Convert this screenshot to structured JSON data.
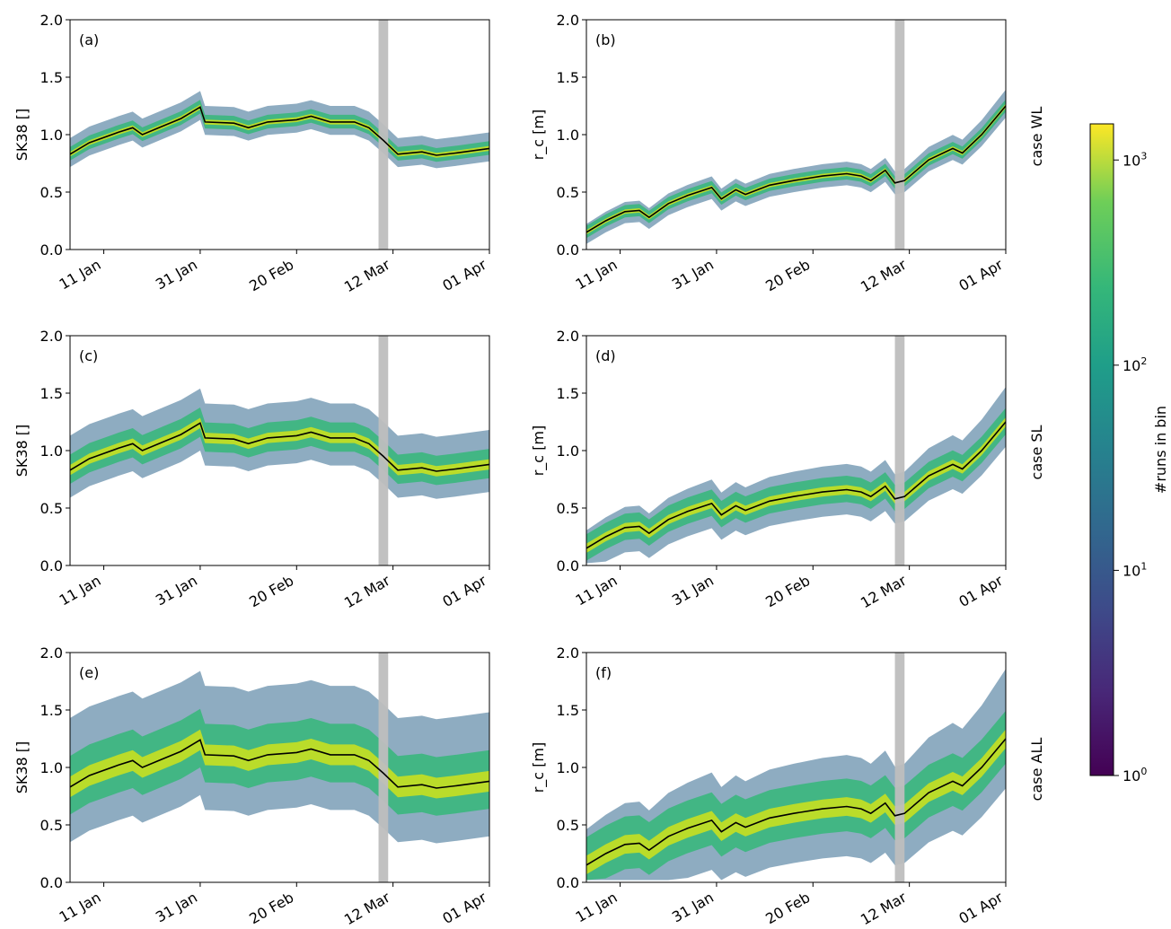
{
  "colorbar": {
    "label": "#runs in bin",
    "scale": "log",
    "range": [
      1,
      1500
    ],
    "ticks": [
      {
        "base": "10",
        "exp": "0",
        "value": 1
      },
      {
        "base": "10",
        "exp": "1",
        "value": 10
      },
      {
        "base": "10",
        "exp": "2",
        "value": 100
      },
      {
        "base": "10",
        "exp": "3",
        "value": 1000
      }
    ],
    "colormap": "viridis"
  },
  "shared_axes": {
    "x_ticks": [
      "11 Jan",
      "31 Jan",
      "20 Feb",
      "12 Mar",
      "01 Apr"
    ],
    "y_ticks": [
      "0.0",
      "0.5",
      "1.0",
      "1.5",
      "2.0"
    ],
    "ylim": [
      0,
      2
    ]
  },
  "rows": [
    {
      "case": "case WL"
    },
    {
      "case": "case SL"
    },
    {
      "case": "case ALL"
    }
  ],
  "chart_data": [
    {
      "type": "heatmap",
      "panel": "(a)",
      "ylabel": "SK38 []",
      "variable": "SK38",
      "x_ticks": [
        "11 Jan",
        "31 Jan",
        "20 Feb",
        "12 Mar",
        "01 Apr"
      ],
      "highlight_band": {
        "color": "#bebebe",
        "x_range": [
          "09 Mar",
          "11 Mar"
        ]
      },
      "median_line": [
        {
          "x": "04 Jan",
          "y": 0.83
        },
        {
          "x": "08 Jan",
          "y": 0.93
        },
        {
          "x": "14 Jan",
          "y": 1.02
        },
        {
          "x": "17 Jan",
          "y": 1.06
        },
        {
          "x": "19 Jan",
          "y": 1.0
        },
        {
          "x": "23 Jan",
          "y": 1.07
        },
        {
          "x": "27 Jan",
          "y": 1.14
        },
        {
          "x": "31 Jan",
          "y": 1.24
        },
        {
          "x": "01 Feb",
          "y": 1.11
        },
        {
          "x": "07 Feb",
          "y": 1.1
        },
        {
          "x": "10 Feb",
          "y": 1.06
        },
        {
          "x": "14 Feb",
          "y": 1.11
        },
        {
          "x": "20 Feb",
          "y": 1.13
        },
        {
          "x": "23 Feb",
          "y": 1.16
        },
        {
          "x": "27 Feb",
          "y": 1.11
        },
        {
          "x": "04 Mar",
          "y": 1.11
        },
        {
          "x": "07 Mar",
          "y": 1.06
        },
        {
          "x": "10 Mar",
          "y": 0.95
        },
        {
          "x": "13 Mar",
          "y": 0.83
        },
        {
          "x": "18 Mar",
          "y": 0.85
        },
        {
          "x": "21 Mar",
          "y": 0.82
        },
        {
          "x": "25 Mar",
          "y": 0.84
        },
        {
          "x": "01 Apr",
          "y": 0.88
        }
      ]
    },
    {
      "type": "heatmap",
      "panel": "(b)",
      "ylabel": "r_c [m]",
      "variable": "r_c",
      "x_ticks": [
        "11 Jan",
        "31 Jan",
        "20 Feb",
        "12 Mar",
        "01 Apr"
      ],
      "highlight_band": {
        "color": "#bebebe",
        "x_range": [
          "09 Mar",
          "11 Mar"
        ]
      },
      "median_line": [
        {
          "x": "04 Jan",
          "y": 0.15
        },
        {
          "x": "08 Jan",
          "y": 0.25
        },
        {
          "x": "12 Jan",
          "y": 0.33
        },
        {
          "x": "15 Jan",
          "y": 0.34
        },
        {
          "x": "17 Jan",
          "y": 0.28
        },
        {
          "x": "21 Jan",
          "y": 0.4
        },
        {
          "x": "25 Jan",
          "y": 0.47
        },
        {
          "x": "30 Jan",
          "y": 0.54
        },
        {
          "x": "01 Feb",
          "y": 0.44
        },
        {
          "x": "04 Feb",
          "y": 0.52
        },
        {
          "x": "06 Feb",
          "y": 0.48
        },
        {
          "x": "11 Feb",
          "y": 0.56
        },
        {
          "x": "16 Feb",
          "y": 0.6
        },
        {
          "x": "22 Feb",
          "y": 0.64
        },
        {
          "x": "27 Feb",
          "y": 0.66
        },
        {
          "x": "02 Mar",
          "y": 0.64
        },
        {
          "x": "04 Mar",
          "y": 0.6
        },
        {
          "x": "07 Mar",
          "y": 0.69
        },
        {
          "x": "09 Mar",
          "y": 0.58
        },
        {
          "x": "11 Mar",
          "y": 0.6
        },
        {
          "x": "16 Mar",
          "y": 0.78
        },
        {
          "x": "21 Mar",
          "y": 0.88
        },
        {
          "x": "23 Mar",
          "y": 0.84
        },
        {
          "x": "27 Mar",
          "y": 1.0
        },
        {
          "x": "01 Apr",
          "y": 1.25
        }
      ]
    },
    {
      "type": "heatmap",
      "panel": "(c)",
      "ylabel": "SK38 []",
      "variable": "SK38",
      "x_ticks": [
        "11 Jan",
        "31 Jan",
        "20 Feb",
        "12 Mar",
        "01 Apr"
      ],
      "highlight_band": {
        "color": "#bebebe",
        "x_range": [
          "09 Mar",
          "11 Mar"
        ]
      },
      "median_line": [
        {
          "x": "04 Jan",
          "y": 0.83
        },
        {
          "x": "08 Jan",
          "y": 0.93
        },
        {
          "x": "14 Jan",
          "y": 1.02
        },
        {
          "x": "17 Jan",
          "y": 1.06
        },
        {
          "x": "19 Jan",
          "y": 1.0
        },
        {
          "x": "23 Jan",
          "y": 1.07
        },
        {
          "x": "27 Jan",
          "y": 1.14
        },
        {
          "x": "31 Jan",
          "y": 1.24
        },
        {
          "x": "01 Feb",
          "y": 1.11
        },
        {
          "x": "07 Feb",
          "y": 1.1
        },
        {
          "x": "10 Feb",
          "y": 1.06
        },
        {
          "x": "14 Feb",
          "y": 1.11
        },
        {
          "x": "20 Feb",
          "y": 1.13
        },
        {
          "x": "23 Feb",
          "y": 1.16
        },
        {
          "x": "27 Feb",
          "y": 1.11
        },
        {
          "x": "04 Mar",
          "y": 1.11
        },
        {
          "x": "07 Mar",
          "y": 1.06
        },
        {
          "x": "10 Mar",
          "y": 0.95
        },
        {
          "x": "13 Mar",
          "y": 0.83
        },
        {
          "x": "18 Mar",
          "y": 0.85
        },
        {
          "x": "21 Mar",
          "y": 0.82
        },
        {
          "x": "25 Mar",
          "y": 0.84
        },
        {
          "x": "01 Apr",
          "y": 0.88
        }
      ]
    },
    {
      "type": "heatmap",
      "panel": "(d)",
      "ylabel": "r_c [m]",
      "variable": "r_c",
      "x_ticks": [
        "11 Jan",
        "31 Jan",
        "20 Feb",
        "12 Mar",
        "01 Apr"
      ],
      "highlight_band": {
        "color": "#bebebe",
        "x_range": [
          "09 Mar",
          "11 Mar"
        ]
      },
      "median_line": [
        {
          "x": "04 Jan",
          "y": 0.15
        },
        {
          "x": "08 Jan",
          "y": 0.25
        },
        {
          "x": "12 Jan",
          "y": 0.33
        },
        {
          "x": "15 Jan",
          "y": 0.34
        },
        {
          "x": "17 Jan",
          "y": 0.28
        },
        {
          "x": "21 Jan",
          "y": 0.4
        },
        {
          "x": "25 Jan",
          "y": 0.47
        },
        {
          "x": "30 Jan",
          "y": 0.54
        },
        {
          "x": "01 Feb",
          "y": 0.44
        },
        {
          "x": "04 Feb",
          "y": 0.52
        },
        {
          "x": "06 Feb",
          "y": 0.48
        },
        {
          "x": "11 Feb",
          "y": 0.56
        },
        {
          "x": "16 Feb",
          "y": 0.6
        },
        {
          "x": "22 Feb",
          "y": 0.64
        },
        {
          "x": "27 Feb",
          "y": 0.66
        },
        {
          "x": "02 Mar",
          "y": 0.64
        },
        {
          "x": "04 Mar",
          "y": 0.6
        },
        {
          "x": "07 Mar",
          "y": 0.69
        },
        {
          "x": "09 Mar",
          "y": 0.58
        },
        {
          "x": "11 Mar",
          "y": 0.6
        },
        {
          "x": "16 Mar",
          "y": 0.78
        },
        {
          "x": "21 Mar",
          "y": 0.88
        },
        {
          "x": "23 Mar",
          "y": 0.84
        },
        {
          "x": "27 Mar",
          "y": 1.0
        },
        {
          "x": "01 Apr",
          "y": 1.25
        }
      ]
    },
    {
      "type": "heatmap",
      "panel": "(e)",
      "ylabel": "SK38 []",
      "variable": "SK38",
      "x_ticks": [
        "11 Jan",
        "31 Jan",
        "20 Feb",
        "12 Mar",
        "01 Apr"
      ],
      "highlight_band": {
        "color": "#bebebe",
        "x_range": [
          "09 Mar",
          "11 Mar"
        ]
      },
      "median_line": [
        {
          "x": "04 Jan",
          "y": 0.83
        },
        {
          "x": "08 Jan",
          "y": 0.93
        },
        {
          "x": "14 Jan",
          "y": 1.02
        },
        {
          "x": "17 Jan",
          "y": 1.06
        },
        {
          "x": "19 Jan",
          "y": 1.0
        },
        {
          "x": "23 Jan",
          "y": 1.07
        },
        {
          "x": "27 Jan",
          "y": 1.14
        },
        {
          "x": "31 Jan",
          "y": 1.24
        },
        {
          "x": "01 Feb",
          "y": 1.11
        },
        {
          "x": "07 Feb",
          "y": 1.1
        },
        {
          "x": "10 Feb",
          "y": 1.06
        },
        {
          "x": "14 Feb",
          "y": 1.11
        },
        {
          "x": "20 Feb",
          "y": 1.13
        },
        {
          "x": "23 Feb",
          "y": 1.16
        },
        {
          "x": "27 Feb",
          "y": 1.11
        },
        {
          "x": "04 Mar",
          "y": 1.11
        },
        {
          "x": "07 Mar",
          "y": 1.06
        },
        {
          "x": "10 Mar",
          "y": 0.95
        },
        {
          "x": "13 Mar",
          "y": 0.83
        },
        {
          "x": "18 Mar",
          "y": 0.85
        },
        {
          "x": "21 Mar",
          "y": 0.82
        },
        {
          "x": "25 Mar",
          "y": 0.84
        },
        {
          "x": "01 Apr",
          "y": 0.88
        }
      ]
    },
    {
      "type": "heatmap",
      "panel": "(f)",
      "ylabel": "r_c [m]",
      "variable": "r_c",
      "x_ticks": [
        "11 Jan",
        "31 Jan",
        "20 Feb",
        "12 Mar",
        "01 Apr"
      ],
      "highlight_band": {
        "color": "#bebebe",
        "x_range": [
          "09 Mar",
          "11 Mar"
        ]
      },
      "median_line": [
        {
          "x": "04 Jan",
          "y": 0.15
        },
        {
          "x": "08 Jan",
          "y": 0.25
        },
        {
          "x": "12 Jan",
          "y": 0.33
        },
        {
          "x": "15 Jan",
          "y": 0.34
        },
        {
          "x": "17 Jan",
          "y": 0.28
        },
        {
          "x": "21 Jan",
          "y": 0.4
        },
        {
          "x": "25 Jan",
          "y": 0.47
        },
        {
          "x": "30 Jan",
          "y": 0.54
        },
        {
          "x": "01 Feb",
          "y": 0.44
        },
        {
          "x": "04 Feb",
          "y": 0.52
        },
        {
          "x": "06 Feb",
          "y": 0.48
        },
        {
          "x": "11 Feb",
          "y": 0.56
        },
        {
          "x": "16 Feb",
          "y": 0.6
        },
        {
          "x": "22 Feb",
          "y": 0.64
        },
        {
          "x": "27 Feb",
          "y": 0.66
        },
        {
          "x": "02 Mar",
          "y": 0.64
        },
        {
          "x": "04 Mar",
          "y": 0.6
        },
        {
          "x": "07 Mar",
          "y": 0.69
        },
        {
          "x": "09 Mar",
          "y": 0.58
        },
        {
          "x": "11 Mar",
          "y": 0.6
        },
        {
          "x": "16 Mar",
          "y": 0.78
        },
        {
          "x": "21 Mar",
          "y": 0.88
        },
        {
          "x": "23 Mar",
          "y": 0.84
        },
        {
          "x": "27 Mar",
          "y": 1.0
        },
        {
          "x": "01 Apr",
          "y": 1.25
        }
      ]
    }
  ]
}
